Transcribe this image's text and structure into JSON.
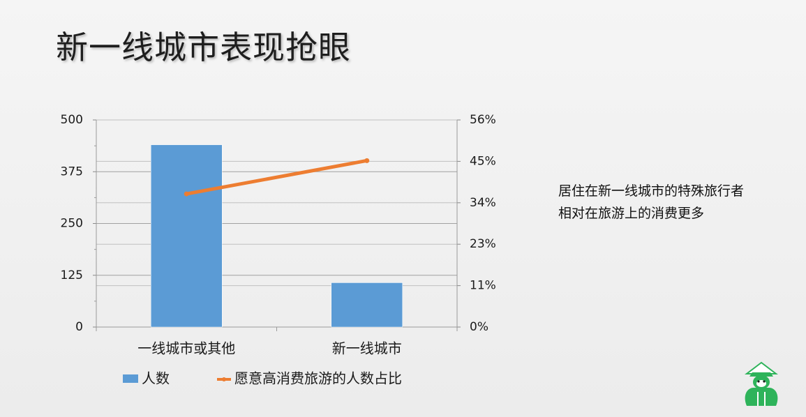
{
  "title": "新一线城市表现抢眼",
  "note_lines": [
    "居住在新一线城市的特殊旅行者",
    "相对在旅游上的消费更多"
  ],
  "colors": {
    "bar": "#5b9bd5",
    "line": "#ed7d31",
    "logo": "#2eb35a"
  },
  "chart_data": {
    "type": "bar",
    "categories": [
      "一线城市或其他",
      "新一线城市"
    ],
    "series": [
      {
        "name": "人数",
        "type": "bar",
        "axis": "left",
        "values": [
          440,
          107
        ]
      },
      {
        "name": "愿意高消费旅游的人数占比",
        "type": "line",
        "axis": "right",
        "values": [
          0.36,
          0.45
        ]
      }
    ],
    "y_left": {
      "ticks": [
        "500",
        "375",
        "250",
        "125",
        "0"
      ],
      "range": [
        0,
        500
      ]
    },
    "y_right": {
      "ticks": [
        "56%",
        "45%",
        "34%",
        "23%",
        "11%",
        "0%"
      ],
      "range": [
        0,
        0.56
      ]
    },
    "grid": true,
    "legend": "bottom"
  }
}
